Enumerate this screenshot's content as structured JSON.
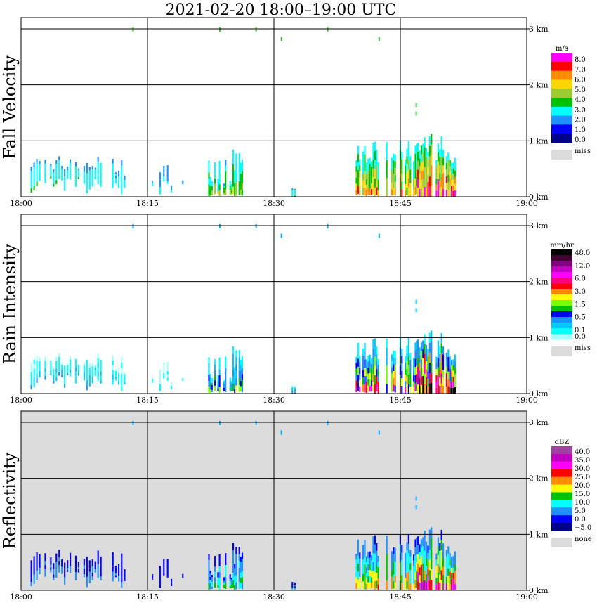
{
  "title": "2021-02-20   18:00–19:00 UTC",
  "chart_data": {
    "type": "heatmap",
    "title": "2021-02-20   18:00–19:00 UTC",
    "x_ticks": [
      "18:00",
      "18:15",
      "18:30",
      "18:45",
      "19:00"
    ],
    "xlim_minutes": [
      0,
      60
    ],
    "y_ticks": [
      "0 km",
      "1 km",
      "2 km",
      "3 km"
    ],
    "ylim_km": [
      0,
      3.2
    ],
    "panels": [
      {
        "ylabel": "Fall Velocity",
        "unit": "m/s",
        "legend_labels": [
          "8.0",
          "7.0",
          "6.0",
          "5.0",
          "4.0",
          "3.0",
          "2.0",
          "1.0",
          "0.0"
        ],
        "legend_colors": [
          "#ff00ff",
          "#ff0000",
          "#ff8c00",
          "#ffd700",
          "#9acd32",
          "#00c000",
          "#00ffff",
          "#1e90ff",
          "#0000ff",
          "#00008b"
        ],
        "missing_label": "miss",
        "missing_color": "#dcdcdc",
        "background": "#ffffff"
      },
      {
        "ylabel": "Rain Intensity",
        "unit": "mm/hr",
        "legend_labels": [
          "48.0",
          "",
          "12.0",
          "",
          "6.0",
          "",
          "3.0",
          "",
          "1.5",
          "",
          "0.5",
          "",
          "0.1",
          "0.0"
        ],
        "legend_colors": [
          "#000000",
          "#400030",
          "#800080",
          "#c000c0",
          "#ff00ff",
          "#ff0080",
          "#ff0000",
          "#ff8c00",
          "#ffff00",
          "#7cfc00",
          "#00c000",
          "#0000ff",
          "#1e90ff",
          "#00c8ff",
          "#00ffff",
          "#aaffff"
        ],
        "missing_label": "miss",
        "missing_color": "#dcdcdc",
        "background": "#ffffff"
      },
      {
        "ylabel": "Reflectivity",
        "unit": "dBZ",
        "legend_labels": [
          "40.0",
          "35.0",
          "30.0",
          "25.0",
          "20.0",
          "15.0",
          "10.0",
          "5.0",
          "0.0",
          "−5.0"
        ],
        "legend_colors": [
          "#a040a0",
          "#c000c0",
          "#ff00ff",
          "#ff0000",
          "#ff8c00",
          "#ffff00",
          "#00c000",
          "#00ffff",
          "#1e90ff",
          "#0000ff",
          "#00008b"
        ],
        "missing_label": "none",
        "missing_color": "#dcdcdc",
        "background": "#dcdcdc"
      }
    ]
  }
}
